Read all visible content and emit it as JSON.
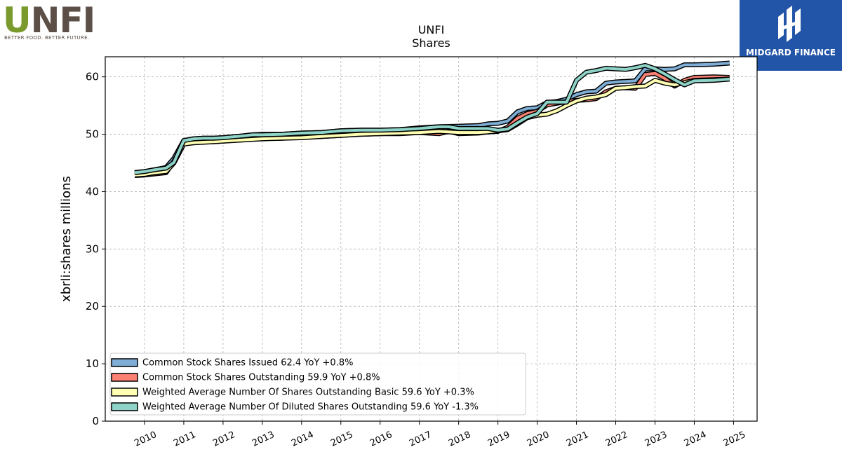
{
  "logos": {
    "left_brand": "UNFI",
    "left_tagline": "BETTER FOOD. BETTER FUTURE.",
    "right_brand": "MIDGARD FINANCE"
  },
  "chart_data": {
    "type": "area",
    "title": "UNFI",
    "subtitle": "Shares",
    "xlabel": "",
    "ylabel": "xbrli:shares millions",
    "xlim": [
      2009.0,
      2025.6
    ],
    "ylim": [
      0,
      63.5
    ],
    "yticks": [
      0,
      10,
      20,
      30,
      40,
      50,
      60
    ],
    "xticks": [
      2010,
      2011,
      2012,
      2013,
      2014,
      2015,
      2016,
      2017,
      2018,
      2019,
      2020,
      2021,
      2022,
      2023,
      2024,
      2025
    ],
    "grid": true,
    "legend_position": "lower-left",
    "series": [
      {
        "name": "Common Stock Shares Issued  62.4 YoY +0.8%",
        "color": "#7eadd6",
        "points": [
          [
            2009.75,
            43.3
          ],
          [
            2010.0,
            43.5
          ],
          [
            2010.25,
            43.8
          ],
          [
            2010.55,
            44.2
          ],
          [
            2010.75,
            45.8
          ],
          [
            2011.0,
            48.9
          ],
          [
            2011.25,
            49.2
          ],
          [
            2011.5,
            49.3
          ],
          [
            2011.75,
            49.3
          ],
          [
            2012.0,
            49.4
          ],
          [
            2012.5,
            49.7
          ],
          [
            2012.75,
            49.9
          ],
          [
            2013.0,
            50.0
          ],
          [
            2013.5,
            50.0
          ],
          [
            2014.0,
            50.2
          ],
          [
            2014.5,
            50.3
          ],
          [
            2015.0,
            50.6
          ],
          [
            2015.5,
            50.7
          ],
          [
            2016.0,
            50.7
          ],
          [
            2016.5,
            50.8
          ],
          [
            2017.0,
            51.1
          ],
          [
            2017.5,
            51.3
          ],
          [
            2018.0,
            51.4
          ],
          [
            2018.5,
            51.5
          ],
          [
            2018.75,
            51.8
          ],
          [
            2019.0,
            51.9
          ],
          [
            2019.25,
            52.3
          ],
          [
            2019.5,
            53.9
          ],
          [
            2019.75,
            54.5
          ],
          [
            2020.0,
            54.6
          ],
          [
            2020.25,
            55.5
          ],
          [
            2020.5,
            55.7
          ],
          [
            2020.75,
            56.1
          ],
          [
            2021.0,
            56.9
          ],
          [
            2021.25,
            57.4
          ],
          [
            2021.5,
            57.5
          ],
          [
            2021.75,
            58.9
          ],
          [
            2022.0,
            59.1
          ],
          [
            2022.25,
            59.2
          ],
          [
            2022.5,
            59.3
          ],
          [
            2022.75,
            61.4
          ],
          [
            2023.0,
            61.4
          ],
          [
            2023.25,
            61.3
          ],
          [
            2023.5,
            61.4
          ],
          [
            2023.75,
            62.1
          ],
          [
            2024.0,
            62.1
          ],
          [
            2024.5,
            62.2
          ],
          [
            2024.9,
            62.4
          ]
        ]
      },
      {
        "name": "Common Stock Shares Outstanding  59.9 YoY +0.8%",
        "color": "#fa8173",
        "points": [
          [
            2009.75,
            42.8
          ],
          [
            2010.0,
            42.9
          ],
          [
            2010.25,
            43.1
          ],
          [
            2010.55,
            43.3
          ],
          [
            2010.75,
            45.3
          ],
          [
            2011.0,
            48.4
          ],
          [
            2011.25,
            48.6
          ],
          [
            2011.5,
            48.7
          ],
          [
            2011.75,
            48.7
          ],
          [
            2012.0,
            48.8
          ],
          [
            2012.5,
            49.1
          ],
          [
            2012.75,
            49.2
          ],
          [
            2013.0,
            49.3
          ],
          [
            2013.5,
            49.3
          ],
          [
            2014.0,
            49.5
          ],
          [
            2014.5,
            49.6
          ],
          [
            2015.0,
            49.8
          ],
          [
            2015.5,
            50.0
          ],
          [
            2016.0,
            50.1
          ],
          [
            2016.5,
            50.1
          ],
          [
            2017.0,
            50.3
          ],
          [
            2017.5,
            50.1
          ],
          [
            2017.75,
            50.5
          ],
          [
            2018.0,
            50.1
          ],
          [
            2018.5,
            50.2
          ],
          [
            2018.75,
            50.4
          ],
          [
            2019.0,
            50.5
          ],
          [
            2019.25,
            51.2
          ],
          [
            2019.5,
            52.8
          ],
          [
            2019.75,
            53.6
          ],
          [
            2020.0,
            54.0
          ],
          [
            2020.25,
            55.1
          ],
          [
            2020.5,
            55.4
          ],
          [
            2020.75,
            55.7
          ],
          [
            2021.0,
            55.9
          ],
          [
            2021.25,
            56.0
          ],
          [
            2021.5,
            56.2
          ],
          [
            2021.75,
            57.4
          ],
          [
            2022.0,
            58.0
          ],
          [
            2022.25,
            58.1
          ],
          [
            2022.5,
            58.0
          ],
          [
            2022.75,
            60.4
          ],
          [
            2023.0,
            60.6
          ],
          [
            2023.25,
            59.7
          ],
          [
            2023.5,
            58.4
          ],
          [
            2023.75,
            59.4
          ],
          [
            2024.0,
            59.9
          ],
          [
            2024.5,
            60.0
          ],
          [
            2024.9,
            59.9
          ]
        ]
      },
      {
        "name": "Weighted Average Number Of Shares Outstanding Basic  59.6 YoY +0.3%",
        "color": "#ffffb3",
        "points": [
          [
            2009.75,
            42.9
          ],
          [
            2010.0,
            43.0
          ],
          [
            2010.25,
            43.3
          ],
          [
            2010.55,
            43.5
          ],
          [
            2010.75,
            45.0
          ],
          [
            2011.0,
            48.3
          ],
          [
            2011.25,
            48.5
          ],
          [
            2011.5,
            48.6
          ],
          [
            2011.75,
            48.7
          ],
          [
            2012.0,
            48.8
          ],
          [
            2012.5,
            49.0
          ],
          [
            2012.75,
            49.1
          ],
          [
            2013.0,
            49.2
          ],
          [
            2013.5,
            49.3
          ],
          [
            2014.0,
            49.4
          ],
          [
            2014.5,
            49.6
          ],
          [
            2015.0,
            49.8
          ],
          [
            2015.5,
            50.0
          ],
          [
            2016.0,
            50.1
          ],
          [
            2016.5,
            50.2
          ],
          [
            2017.0,
            50.3
          ],
          [
            2017.5,
            50.5
          ],
          [
            2018.0,
            50.3
          ],
          [
            2018.5,
            50.3
          ],
          [
            2018.75,
            50.4
          ],
          [
            2019.0,
            50.6
          ],
          [
            2019.25,
            50.8
          ],
          [
            2019.5,
            51.8
          ],
          [
            2019.75,
            52.9
          ],
          [
            2020.0,
            53.3
          ],
          [
            2020.25,
            53.5
          ],
          [
            2020.5,
            54.1
          ],
          [
            2020.75,
            55.0
          ],
          [
            2021.0,
            55.8
          ],
          [
            2021.25,
            56.3
          ],
          [
            2021.5,
            56.5
          ],
          [
            2021.75,
            56.9
          ],
          [
            2022.0,
            58.0
          ],
          [
            2022.25,
            58.1
          ],
          [
            2022.5,
            58.3
          ],
          [
            2022.75,
            58.4
          ],
          [
            2023.0,
            59.4
          ],
          [
            2023.25,
            58.9
          ],
          [
            2023.5,
            58.6
          ],
          [
            2023.75,
            59.0
          ],
          [
            2024.0,
            59.4
          ],
          [
            2024.5,
            59.5
          ],
          [
            2024.9,
            59.6
          ]
        ]
      },
      {
        "name": "Weighted Average Number Of Diluted Shares Outstanding  59.6 YoY -1.3%",
        "color": "#8dd3c7",
        "points": [
          [
            2009.75,
            43.3
          ],
          [
            2010.0,
            43.5
          ],
          [
            2010.25,
            43.8
          ],
          [
            2010.55,
            44.1
          ],
          [
            2010.75,
            45.1
          ],
          [
            2011.0,
            48.9
          ],
          [
            2011.25,
            49.2
          ],
          [
            2011.5,
            49.3
          ],
          [
            2011.75,
            49.3
          ],
          [
            2012.0,
            49.4
          ],
          [
            2012.5,
            49.7
          ],
          [
            2012.75,
            49.9
          ],
          [
            2013.0,
            49.9
          ],
          [
            2013.5,
            50.0
          ],
          [
            2014.0,
            50.2
          ],
          [
            2014.5,
            50.3
          ],
          [
            2015.0,
            50.6
          ],
          [
            2015.5,
            50.7
          ],
          [
            2016.0,
            50.7
          ],
          [
            2016.5,
            50.8
          ],
          [
            2017.0,
            51.0
          ],
          [
            2017.5,
            51.3
          ],
          [
            2017.75,
            51.3
          ],
          [
            2018.0,
            51.0
          ],
          [
            2018.5,
            51.0
          ],
          [
            2018.75,
            51.0
          ],
          [
            2019.0,
            50.7
          ],
          [
            2019.25,
            50.9
          ],
          [
            2019.5,
            52.0
          ],
          [
            2019.75,
            53.0
          ],
          [
            2020.0,
            53.6
          ],
          [
            2020.25,
            55.6
          ],
          [
            2020.5,
            55.6
          ],
          [
            2020.75,
            55.6
          ],
          [
            2021.0,
            59.4
          ],
          [
            2021.25,
            60.8
          ],
          [
            2021.5,
            61.1
          ],
          [
            2021.75,
            61.5
          ],
          [
            2022.0,
            61.4
          ],
          [
            2022.25,
            61.3
          ],
          [
            2022.5,
            61.6
          ],
          [
            2022.75,
            62.0
          ],
          [
            2023.0,
            61.4
          ],
          [
            2023.25,
            60.5
          ],
          [
            2023.5,
            59.5
          ],
          [
            2023.75,
            58.6
          ],
          [
            2024.0,
            59.3
          ],
          [
            2024.5,
            59.4
          ],
          [
            2024.9,
            59.6
          ]
        ]
      }
    ]
  }
}
